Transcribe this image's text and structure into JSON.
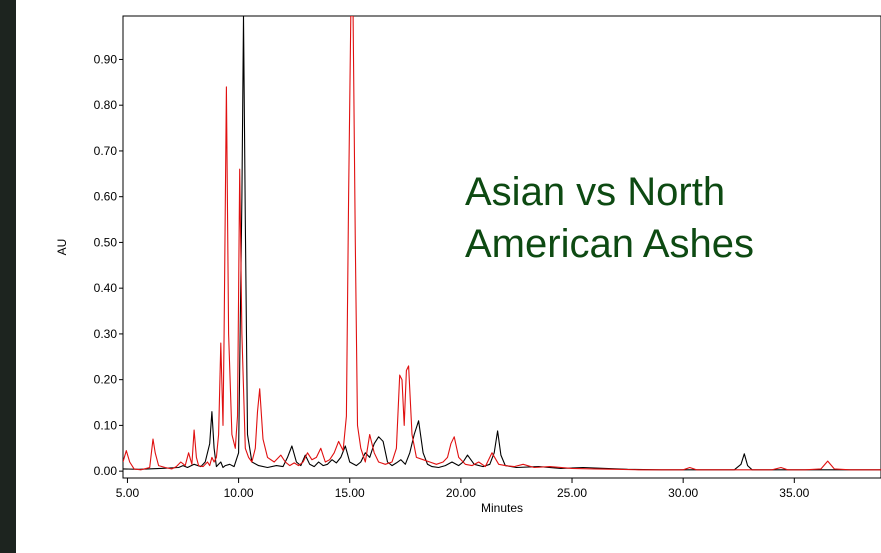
{
  "chart_data": {
    "type": "line",
    "title": "",
    "xlabel": "Minutes",
    "ylabel": "AU",
    "xlim": [
      4.8,
      38.9
    ],
    "ylim": [
      -0.015,
      0.995
    ],
    "x_ticks": [
      5,
      10,
      15,
      20,
      25,
      30,
      35
    ],
    "x_tick_labels": [
      "5.00",
      "10.00",
      "15.00",
      "20.00",
      "25.00",
      "30.00",
      "35.00"
    ],
    "y_ticks": [
      0,
      0.1,
      0.2,
      0.3,
      0.4,
      0.5,
      0.6,
      0.7,
      0.8,
      0.9
    ],
    "y_tick_labels": [
      "0.00",
      "0.10",
      "0.20",
      "0.30",
      "0.40",
      "0.50",
      "0.60",
      "0.70",
      "0.80",
      "0.90"
    ],
    "grid": false,
    "annotation": [
      "Asian vs North",
      "American Ashes"
    ],
    "series": [
      {
        "color": "#000000",
        "x": [
          4.8,
          5.5,
          6.5,
          7.3,
          7.5,
          7.7,
          8.0,
          8.3,
          8.5,
          8.7,
          8.8,
          8.9,
          9.0,
          9.1,
          9.2,
          9.3,
          9.4,
          9.6,
          9.8,
          10.0,
          10.15,
          10.22,
          10.3,
          10.4,
          10.6,
          10.9,
          11.3,
          11.7,
          12.0,
          12.2,
          12.4,
          12.6,
          12.8,
          13.0,
          13.2,
          13.4,
          13.6,
          13.8,
          14.0,
          14.2,
          14.4,
          14.6,
          14.8,
          15.0,
          15.3,
          15.5,
          15.7,
          15.9,
          16.1,
          16.3,
          16.5,
          16.7,
          16.9,
          17.1,
          17.3,
          17.5,
          17.7,
          17.9,
          18.1,
          18.3,
          18.5,
          18.7,
          19.0,
          19.3,
          19.6,
          19.9,
          20.1,
          20.3,
          20.6,
          21.0,
          21.3,
          21.5,
          21.65,
          21.8,
          22.0,
          22.5,
          23.5,
          24.5,
          25.5,
          26.5,
          27.5,
          29.0,
          30.5,
          31.5,
          32.3,
          32.6,
          32.75,
          32.9,
          33.1,
          33.5,
          35.0,
          36.5,
          38.9
        ],
        "y": [
          0.005,
          0.004,
          0.006,
          0.008,
          0.012,
          0.008,
          0.015,
          0.01,
          0.02,
          0.06,
          0.13,
          0.05,
          0.01,
          0.015,
          0.02,
          0.008,
          0.012,
          0.015,
          0.01,
          0.04,
          0.6,
          0.995,
          0.55,
          0.08,
          0.02,
          0.012,
          0.008,
          0.012,
          0.01,
          0.03,
          0.055,
          0.02,
          0.012,
          0.035,
          0.015,
          0.01,
          0.02,
          0.012,
          0.015,
          0.025,
          0.018,
          0.03,
          0.055,
          0.02,
          0.012,
          0.02,
          0.04,
          0.03,
          0.06,
          0.075,
          0.065,
          0.02,
          0.012,
          0.018,
          0.025,
          0.015,
          0.04,
          0.08,
          0.11,
          0.04,
          0.015,
          0.01,
          0.008,
          0.012,
          0.02,
          0.012,
          0.02,
          0.035,
          0.015,
          0.01,
          0.015,
          0.04,
          0.088,
          0.035,
          0.012,
          0.008,
          0.01,
          0.006,
          0.008,
          0.006,
          0.004,
          0.003,
          0.003,
          0.003,
          0.003,
          0.015,
          0.038,
          0.012,
          0.003,
          0.003,
          0.003,
          0.003,
          0.003
        ]
      },
      {
        "color": "#e01010",
        "x": [
          4.8,
          4.95,
          5.1,
          5.3,
          5.6,
          6.0,
          6.15,
          6.25,
          6.4,
          6.7,
          7.0,
          7.2,
          7.4,
          7.6,
          7.75,
          7.9,
          8.0,
          8.1,
          8.2,
          8.4,
          8.6,
          8.7,
          8.8,
          8.9,
          9.0,
          9.1,
          9.2,
          9.3,
          9.35,
          9.45,
          9.55,
          9.7,
          9.85,
          9.95,
          10.05,
          10.15,
          10.3,
          10.45,
          10.6,
          10.75,
          10.85,
          10.95,
          11.1,
          11.3,
          11.6,
          11.9,
          12.1,
          12.3,
          12.5,
          12.7,
          12.9,
          13.1,
          13.3,
          13.5,
          13.7,
          13.9,
          14.1,
          14.3,
          14.5,
          14.7,
          14.85,
          14.95,
          15.05,
          15.15,
          15.25,
          15.35,
          15.5,
          15.7,
          15.9,
          16.1,
          16.3,
          16.6,
          16.9,
          17.1,
          17.25,
          17.35,
          17.45,
          17.55,
          17.65,
          17.8,
          18.0,
          18.3,
          18.6,
          18.9,
          19.2,
          19.4,
          19.55,
          19.7,
          19.9,
          20.2,
          20.5,
          20.8,
          21.1,
          21.4,
          21.7,
          22.0,
          22.4,
          22.8,
          23.3,
          24.0,
          25.0,
          26.0,
          27.0,
          28.0,
          29.0,
          30.0,
          30.3,
          30.6,
          32.0,
          34.0,
          34.4,
          34.7,
          35.5,
          36.2,
          36.5,
          36.8,
          37.5,
          38.9
        ],
        "y": [
          0.02,
          0.045,
          0.02,
          0.005,
          0.003,
          0.008,
          0.07,
          0.04,
          0.012,
          0.008,
          0.005,
          0.01,
          0.02,
          0.012,
          0.04,
          0.015,
          0.09,
          0.03,
          0.012,
          0.01,
          0.02,
          0.012,
          0.03,
          0.02,
          0.03,
          0.08,
          0.28,
          0.1,
          0.3,
          0.84,
          0.3,
          0.08,
          0.05,
          0.12,
          0.66,
          0.3,
          0.05,
          0.03,
          0.02,
          0.05,
          0.13,
          0.18,
          0.07,
          0.03,
          0.02,
          0.035,
          0.02,
          0.012,
          0.018,
          0.012,
          0.02,
          0.04,
          0.025,
          0.03,
          0.05,
          0.02,
          0.025,
          0.04,
          0.065,
          0.045,
          0.12,
          0.6,
          0.995,
          0.995,
          0.5,
          0.1,
          0.05,
          0.02,
          0.08,
          0.04,
          0.02,
          0.015,
          0.02,
          0.05,
          0.21,
          0.2,
          0.1,
          0.22,
          0.23,
          0.08,
          0.03,
          0.025,
          0.02,
          0.015,
          0.02,
          0.03,
          0.06,
          0.075,
          0.03,
          0.015,
          0.012,
          0.02,
          0.01,
          0.04,
          0.015,
          0.012,
          0.01,
          0.015,
          0.008,
          0.01,
          0.006,
          0.005,
          0.004,
          0.003,
          0.003,
          0.003,
          0.008,
          0.003,
          0.003,
          0.003,
          0.008,
          0.003,
          0.003,
          0.005,
          0.022,
          0.005,
          0.003,
          0.003
        ]
      }
    ]
  }
}
